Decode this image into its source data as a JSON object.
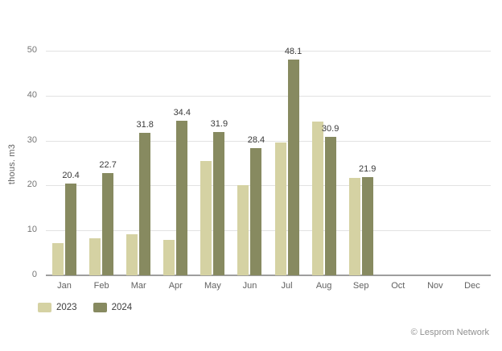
{
  "chart_data": {
    "type": "bar",
    "title": "",
    "xlabel": "",
    "ylabel": "thous. m3",
    "categories": [
      "Jan",
      "Feb",
      "Mar",
      "Apr",
      "May",
      "Jun",
      "Jul",
      "Aug",
      "Sep",
      "Oct",
      "Nov",
      "Dec"
    ],
    "series": [
      {
        "name": "2023",
        "color": "#d5d2a3",
        "show_value_labels": false,
        "values": [
          7.2,
          8.3,
          9.2,
          7.9,
          25.4,
          20.0,
          29.5,
          34.3,
          21.7,
          null,
          null,
          null
        ]
      },
      {
        "name": "2024",
        "color": "#878a60",
        "show_value_labels": true,
        "values": [
          20.4,
          22.7,
          31.8,
          34.4,
          31.9,
          28.4,
          48.1,
          30.9,
          21.9,
          null,
          null,
          null
        ]
      }
    ],
    "ylim": [
      0,
      50
    ],
    "yticks": [
      0,
      10,
      20,
      30,
      40,
      50
    ],
    "grid": true,
    "legend_position": "bottom-left"
  },
  "footer": {
    "copyright": "© Lesprom Network"
  },
  "colors": {
    "gridline": "#e2e2e2",
    "axis_line": "#9e9e9e",
    "tick_text": "#757575",
    "label_text": "#616161",
    "value_text": "#3a3a3a",
    "copyright_text": "#909090",
    "background": "#ffffff"
  }
}
